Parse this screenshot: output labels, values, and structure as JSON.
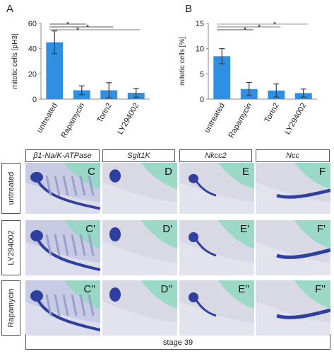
{
  "chart_data": [
    {
      "type": "bar",
      "panel": "A",
      "ylabel": "mitotic cells [pH3]",
      "ylim": [
        0,
        60
      ],
      "yticks": [
        0,
        20,
        40,
        60
      ],
      "categories": [
        "untreated",
        "Rapamycin",
        "Torin2",
        "LY294002"
      ],
      "values": [
        45,
        7,
        7,
        5
      ],
      "errors": [
        9,
        3.5,
        6,
        3.5
      ],
      "significance": [
        "*",
        "*",
        "*"
      ]
    },
    {
      "type": "bar",
      "panel": "B",
      "ylabel": "mitotic cells [%]",
      "ylim": [
        0,
        15
      ],
      "yticks": [
        0,
        5,
        10,
        15
      ],
      "categories": [
        "untreated",
        "Rapamycin",
        "Torin2",
        "LY294002"
      ],
      "values": [
        8.5,
        2,
        1.7,
        1.2
      ],
      "errors": [
        1.5,
        1.3,
        1.3,
        0.8
      ],
      "significance": [
        "*",
        "*",
        "*"
      ]
    }
  ],
  "colors": {
    "bar": "#2f8fe3",
    "error": "#3a3a3a",
    "stain": "#2f3f9e",
    "tissue": "#d7d8ea",
    "yolk": "#8fd8c0"
  },
  "grid": {
    "columns": [
      "β1-Na/K-ATPase",
      "Sglt1K",
      "Nkcc2",
      "Ncc"
    ],
    "rows": [
      "untreated",
      "LY294002",
      "Rapamycin"
    ],
    "labels": [
      [
        "C",
        "D",
        "E",
        "F"
      ],
      [
        "C'",
        "D'",
        "E'",
        "F'"
      ],
      [
        "C''",
        "D''",
        "E''",
        "F''"
      ]
    ],
    "footer": "stage 39"
  }
}
